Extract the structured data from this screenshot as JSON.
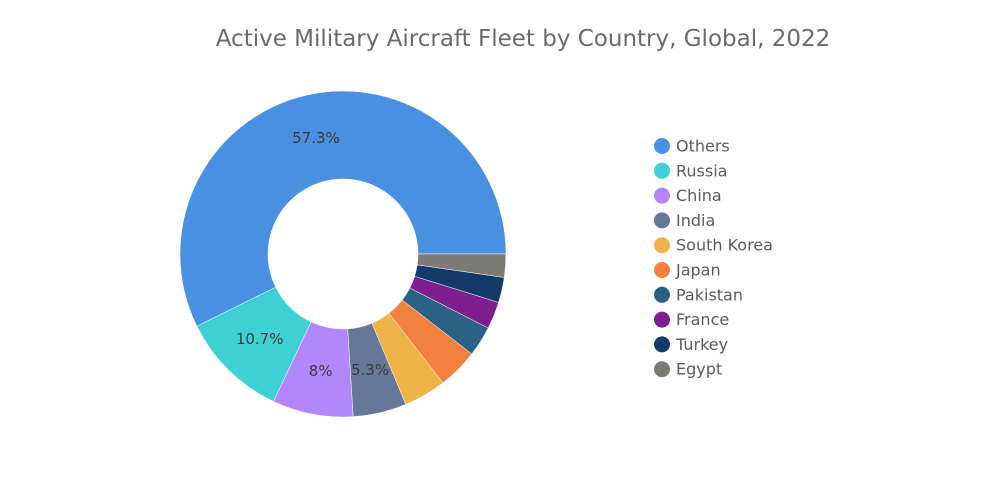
{
  "chart_data": {
    "type": "pie",
    "title": "Active Military Aircraft Fleet by Country, Global, 2022",
    "donut": true,
    "legend_position": "right",
    "slices": [
      {
        "name": "Others",
        "value": 57.3,
        "label": "57.3%",
        "color": "#4a90e2"
      },
      {
        "name": "Russia",
        "value": 10.7,
        "label": "10.7%",
        "color": "#3fd0d6"
      },
      {
        "name": "China",
        "value": 8.0,
        "label": "8%",
        "color": "#b387fb"
      },
      {
        "name": "India",
        "value": 5.3,
        "label": "5.3%",
        "color": "#667899"
      },
      {
        "name": "South Korea",
        "value": 4.2,
        "label": "",
        "color": "#eeb44a"
      },
      {
        "name": "Japan",
        "value": 4.0,
        "label": "",
        "color": "#f3813e"
      },
      {
        "name": "Pakistan",
        "value": 3.0,
        "label": "",
        "color": "#2b6185"
      },
      {
        "name": "France",
        "value": 2.7,
        "label": "",
        "color": "#7e1f8f"
      },
      {
        "name": "Turkey",
        "value": 2.5,
        "label": "",
        "color": "#143a6a"
      },
      {
        "name": "Egypt",
        "value": 2.3,
        "label": "",
        "color": "#7d7b74"
      }
    ]
  }
}
